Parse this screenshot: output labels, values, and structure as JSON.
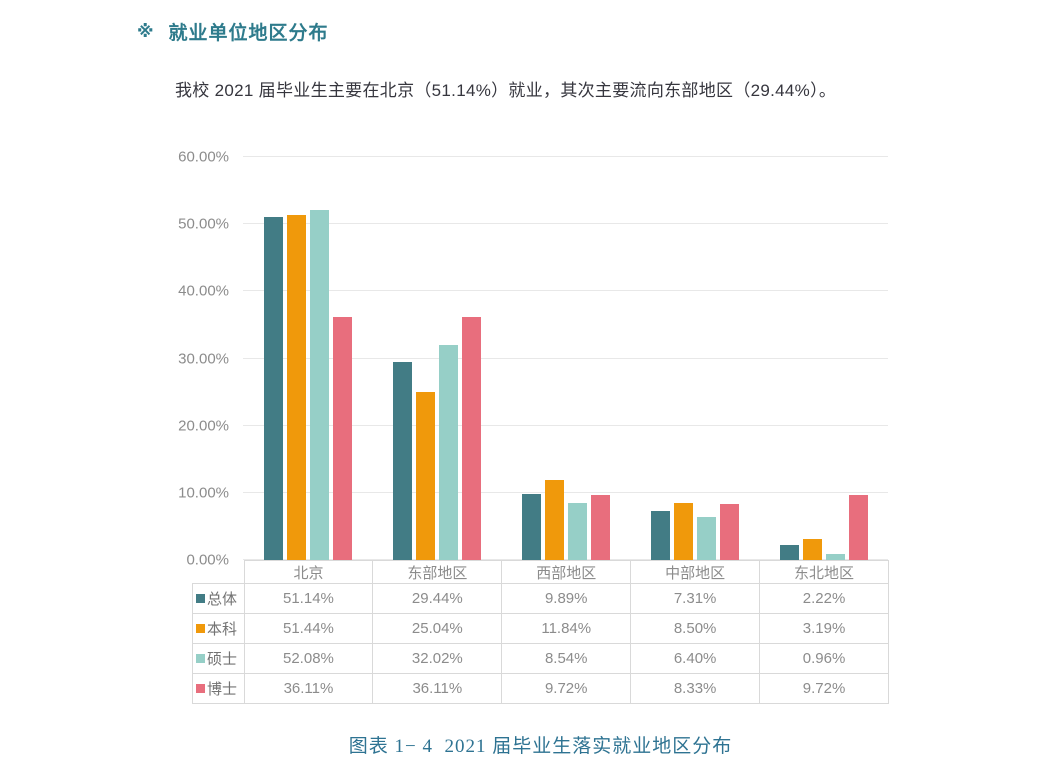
{
  "header": {
    "marker": "※",
    "title": "就业单位地区分布",
    "intro": "我校 2021 届毕业生主要在北京（51.14%）就业，其次主要流向东部地区（29.44%）。"
  },
  "caption": "图表 1− 4  2021 届毕业生落实就业地区分布",
  "colors": {
    "section_title": "#2e7b8c",
    "caption_text": "#2e7392",
    "body_text": "#36363e",
    "axis_text": "#8c8c8c",
    "legend_text": "#737373",
    "grid_line": "#e8e8e8",
    "table_border": "#d9d9d9"
  },
  "chart_data": {
    "type": "bar",
    "title": "",
    "xlabel": "",
    "ylabel": "",
    "categories": [
      "北京",
      "东部地区",
      "西部地区",
      "中部地区",
      "东北地区"
    ],
    "series": [
      {
        "name": "总体",
        "color": "#427c85",
        "values": [
          51.14,
          29.44,
          9.89,
          7.31,
          2.22
        ],
        "display": [
          "51.14%",
          "29.44%",
          "9.89%",
          "7.31%",
          "2.22%"
        ]
      },
      {
        "name": "本科",
        "color": "#f0990b",
        "values": [
          51.44,
          25.04,
          11.84,
          8.5,
          3.19
        ],
        "display": [
          "51.44%",
          "25.04%",
          "11.84%",
          "8.50%",
          "3.19%"
        ]
      },
      {
        "name": "硕士",
        "color": "#96cfc7",
        "values": [
          52.08,
          32.02,
          8.54,
          6.4,
          0.96
        ],
        "display": [
          "52.08%",
          "32.02%",
          "8.54%",
          "6.40%",
          "0.96%"
        ]
      },
      {
        "name": "博士",
        "color": "#e86e7d",
        "values": [
          36.11,
          36.11,
          9.72,
          8.33,
          9.72
        ],
        "display": [
          "36.11%",
          "36.11%",
          "9.72%",
          "8.33%",
          "9.72%"
        ]
      }
    ],
    "ylim": [
      0,
      60
    ],
    "ytick_step": 10,
    "yticks": [
      "0.00%",
      "10.00%",
      "20.00%",
      "30.00%",
      "40.00%",
      "50.00%",
      "60.00%"
    ],
    "grid": true,
    "legend_position": "data-table-left",
    "show_data_table": true
  }
}
